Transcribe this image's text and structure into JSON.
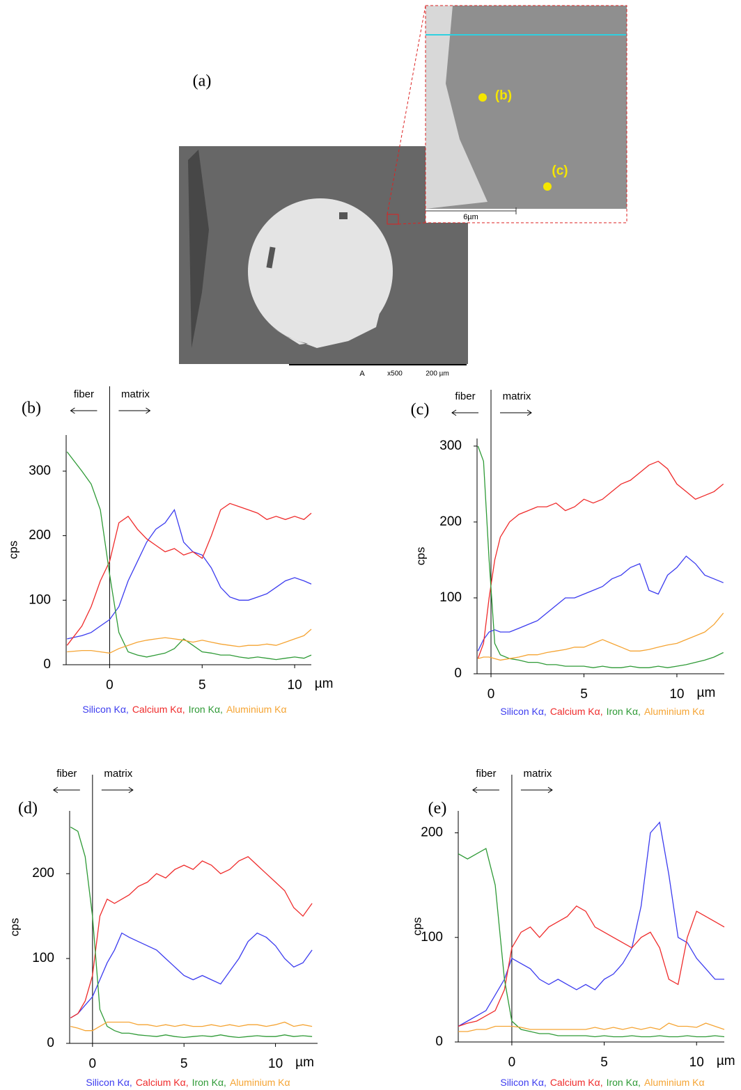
{
  "figure": {
    "panel_label": "(a)",
    "inset_labels": [
      "(b)",
      "(c)"
    ],
    "inset_scale": "6µm",
    "sem_footer": [
      "A",
      "x500",
      "200 µm"
    ]
  },
  "chart_data": [
    {
      "type": "line",
      "title": "(b)",
      "ylabel": "cps",
      "x_unit": "µm",
      "annotations": [
        "fiber",
        "matrix"
      ],
      "x": [
        -2.3,
        -1.5,
        -1,
        -0.5,
        0,
        0.5,
        1,
        1.5,
        2,
        2.5,
        3,
        3.5,
        4,
        4.5,
        5,
        5.5,
        6,
        6.5,
        7,
        7.5,
        8,
        8.5,
        9,
        9.5,
        10,
        10.5,
        10.9
      ],
      "xlim": [
        -2.35,
        10.9
      ],
      "xticks": [
        0,
        5,
        10
      ],
      "ylim": [
        0,
        356
      ],
      "yticks": [
        0,
        100,
        200,
        300
      ],
      "series": [
        {
          "name": "Silicon Kα,",
          "color": "#3b3bef",
          "values": [
            40,
            45,
            50,
            60,
            70,
            90,
            130,
            160,
            190,
            210,
            220,
            240,
            190,
            175,
            170,
            150,
            120,
            105,
            100,
            100,
            105,
            110,
            120,
            130,
            135,
            130,
            125
          ]
        },
        {
          "name": "Calcium Kα,",
          "color": "#ef2b2b",
          "values": [
            30,
            60,
            90,
            130,
            160,
            220,
            230,
            210,
            195,
            185,
            175,
            180,
            170,
            175,
            165,
            200,
            240,
            250,
            245,
            240,
            235,
            225,
            230,
            225,
            230,
            225,
            235
          ]
        },
        {
          "name": "Iron Kα,",
          "color": "#2e9a36",
          "values": [
            330,
            300,
            280,
            240,
            140,
            50,
            20,
            15,
            12,
            15,
            18,
            25,
            40,
            30,
            20,
            18,
            15,
            15,
            12,
            10,
            12,
            10,
            8,
            10,
            12,
            10,
            15
          ]
        },
        {
          "name": "Aluminium Kα",
          "color": "#f5a433",
          "values": [
            20,
            22,
            22,
            20,
            18,
            25,
            30,
            35,
            38,
            40,
            42,
            40,
            38,
            35,
            38,
            35,
            32,
            30,
            28,
            30,
            30,
            32,
            30,
            35,
            40,
            45,
            55
          ]
        }
      ]
    },
    {
      "type": "line",
      "title": "(c)",
      "ylabel": "cps",
      "x_unit": "µm",
      "annotations": [
        "fiber",
        "matrix"
      ],
      "x": [
        -0.7,
        -0.4,
        -0.1,
        0.2,
        0.5,
        1,
        1.5,
        2,
        2.5,
        3,
        3.5,
        4,
        4.5,
        5,
        5.5,
        6,
        6.5,
        7,
        7.5,
        8,
        8.5,
        9,
        9.5,
        10,
        10.5,
        11,
        11.5,
        12,
        12.5
      ],
      "xlim": [
        -0.75,
        12.55
      ],
      "xticks": [
        0,
        5,
        10
      ],
      "ylim": [
        0,
        310
      ],
      "yticks": [
        0,
        100,
        200,
        300
      ],
      "series": [
        {
          "name": "Silicon Kα,",
          "color": "#3b3bef",
          "values": [
            30,
            45,
            55,
            58,
            55,
            55,
            60,
            65,
            70,
            80,
            90,
            100,
            100,
            105,
            110,
            115,
            125,
            130,
            140,
            145,
            110,
            105,
            130,
            140,
            155,
            145,
            130,
            125,
            120
          ]
        },
        {
          "name": "Calcium Kα,",
          "color": "#ef2b2b",
          "values": [
            20,
            40,
            100,
            150,
            180,
            200,
            210,
            215,
            220,
            220,
            225,
            215,
            220,
            230,
            225,
            230,
            240,
            250,
            255,
            265,
            275,
            280,
            270,
            250,
            240,
            230,
            235,
            240,
            250
          ]
        },
        {
          "name": "Iron Kα,",
          "color": "#2e9a36",
          "values": [
            300,
            280,
            150,
            40,
            25,
            20,
            18,
            15,
            15,
            12,
            12,
            10,
            10,
            10,
            8,
            10,
            8,
            8,
            10,
            8,
            8,
            10,
            8,
            10,
            12,
            15,
            18,
            22,
            28
          ]
        },
        {
          "name": "Aluminium Kα",
          "color": "#f5a433",
          "values": [
            20,
            22,
            22,
            20,
            18,
            20,
            22,
            25,
            25,
            28,
            30,
            32,
            35,
            35,
            40,
            45,
            40,
            35,
            30,
            30,
            32,
            35,
            38,
            40,
            45,
            50,
            55,
            65,
            80
          ]
        }
      ]
    },
    {
      "type": "line",
      "title": "(d)",
      "ylabel": "cps",
      "x_unit": "µm",
      "annotations": [
        "fiber",
        "matrix"
      ],
      "x": [
        -1.2,
        -0.8,
        -0.4,
        0,
        0.4,
        0.8,
        1.2,
        1.6,
        2,
        2.5,
        3,
        3.5,
        4,
        4.5,
        5,
        5.5,
        6,
        6.5,
        7,
        7.5,
        8,
        8.5,
        9,
        9.5,
        10,
        10.5,
        11,
        11.5,
        12
      ],
      "xlim": [
        -1.25,
        12.3
      ],
      "xticks": [
        0,
        5,
        10
      ],
      "ylim": [
        0,
        274
      ],
      "yticks": [
        0,
        100,
        200
      ],
      "series": [
        {
          "name": "Silicon Kα,",
          "color": "#3b3bef",
          "values": [
            30,
            35,
            45,
            55,
            75,
            95,
            110,
            130,
            125,
            120,
            115,
            110,
            100,
            90,
            80,
            75,
            80,
            75,
            70,
            85,
            100,
            120,
            130,
            125,
            115,
            100,
            90,
            95,
            110
          ]
        },
        {
          "name": "Calcium Kα,",
          "color": "#ef2b2b",
          "values": [
            30,
            35,
            50,
            80,
            150,
            170,
            165,
            170,
            175,
            185,
            190,
            200,
            195,
            205,
            210,
            205,
            215,
            210,
            200,
            205,
            215,
            220,
            210,
            200,
            190,
            180,
            160,
            150,
            165
          ]
        },
        {
          "name": "Iron Kα,",
          "color": "#2e9a36",
          "values": [
            255,
            250,
            220,
            150,
            40,
            20,
            15,
            12,
            12,
            10,
            9,
            8,
            10,
            8,
            7,
            8,
            9,
            8,
            10,
            8,
            7,
            8,
            9,
            8,
            8,
            10,
            8,
            9,
            8
          ]
        },
        {
          "name": "Aluminium Kα",
          "color": "#f5a433",
          "values": [
            20,
            18,
            15,
            15,
            20,
            25,
            25,
            25,
            25,
            22,
            22,
            20,
            22,
            20,
            22,
            20,
            20,
            22,
            20,
            22,
            20,
            22,
            22,
            20,
            22,
            25,
            20,
            22,
            20
          ]
        }
      ]
    },
    {
      "type": "line",
      "title": "(e)",
      "ylabel": "cps",
      "x_unit": "µm",
      "annotations": [
        "fiber",
        "matrix"
      ],
      "x": [
        -2.9,
        -2.4,
        -1.9,
        -1.4,
        -0.9,
        -0.4,
        0,
        0.5,
        1,
        1.5,
        2,
        2.5,
        3,
        3.5,
        4,
        4.5,
        5,
        5.5,
        6,
        6.5,
        7,
        7.5,
        8,
        8.5,
        9,
        9.5,
        10,
        10.5,
        11,
        11.5
      ],
      "xlim": [
        -2.9,
        11.5
      ],
      "xticks": [
        0,
        5,
        10
      ],
      "ylim": [
        0,
        221
      ],
      "yticks": [
        0,
        100,
        200
      ],
      "series": [
        {
          "name": "Silicon Kα,",
          "color": "#3b3bef",
          "values": [
            15,
            20,
            25,
            30,
            45,
            60,
            80,
            75,
            70,
            60,
            55,
            60,
            55,
            50,
            55,
            50,
            60,
            65,
            75,
            90,
            130,
            200,
            210,
            160,
            100,
            95,
            80,
            70,
            60,
            60
          ]
        },
        {
          "name": "Calcium Kα,",
          "color": "#ef2b2b",
          "values": [
            15,
            18,
            20,
            25,
            30,
            50,
            90,
            105,
            110,
            100,
            110,
            115,
            120,
            130,
            125,
            110,
            105,
            100,
            95,
            90,
            100,
            105,
            90,
            60,
            55,
            100,
            125,
            120,
            115,
            110
          ]
        },
        {
          "name": "Iron Kα,",
          "color": "#2e9a36",
          "values": [
            180,
            175,
            180,
            185,
            150,
            60,
            20,
            12,
            10,
            8,
            8,
            6,
            6,
            6,
            6,
            5,
            6,
            5,
            5,
            6,
            5,
            5,
            6,
            5,
            5,
            6,
            5,
            5,
            6,
            5
          ]
        },
        {
          "name": "Aluminium Kα",
          "color": "#f5a433",
          "values": [
            10,
            10,
            12,
            12,
            15,
            15,
            15,
            14,
            12,
            12,
            12,
            12,
            12,
            12,
            12,
            14,
            12,
            14,
            12,
            14,
            12,
            14,
            12,
            18,
            15,
            15,
            14,
            18,
            15,
            12
          ]
        }
      ]
    }
  ]
}
